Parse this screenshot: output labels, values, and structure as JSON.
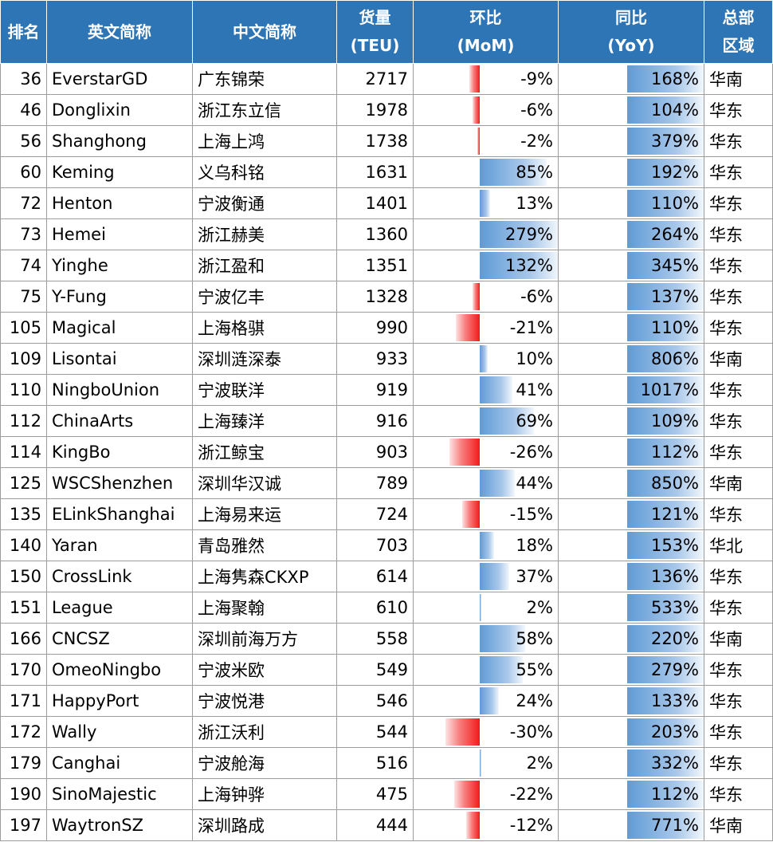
{
  "headers": {
    "rank": "排名",
    "en": "英文简称",
    "cn": "中文简称",
    "vol": [
      "货量",
      "(TEU)"
    ],
    "mom": [
      "环比",
      "(MoM)"
    ],
    "yoy": [
      "同比",
      "(YoY)"
    ],
    "region": [
      "总部",
      "区域"
    ]
  },
  "colors": {
    "header_bg": "#2e75b6",
    "positive_bar": "#5f9bd6",
    "negative_bar": "#f21b1b"
  },
  "rows": [
    {
      "rank": "36",
      "en": "EverstarGD",
      "cn": "广东锦荣",
      "vol": "2717",
      "mom": "-9%",
      "yoy": "168%",
      "region": "华南"
    },
    {
      "rank": "46",
      "en": "Donglixin",
      "cn": "浙江东立信",
      "vol": "1978",
      "mom": "-6%",
      "yoy": "104%",
      "region": "华东"
    },
    {
      "rank": "56",
      "en": "Shanghong",
      "cn": "上海上鸿",
      "vol": "1738",
      "mom": "-2%",
      "yoy": "379%",
      "region": "华东"
    },
    {
      "rank": "60",
      "en": "Keming",
      "cn": "义乌科铭",
      "vol": "1631",
      "mom": "85%",
      "yoy": "192%",
      "region": "华东"
    },
    {
      "rank": "72",
      "en": "Henton",
      "cn": "宁波衡通",
      "vol": "1401",
      "mom": "13%",
      "yoy": "110%",
      "region": "华东"
    },
    {
      "rank": "73",
      "en": "Hemei",
      "cn": "浙江赫美",
      "vol": "1360",
      "mom": "279%",
      "yoy": "264%",
      "region": "华东"
    },
    {
      "rank": "74",
      "en": "Yinghe",
      "cn": "浙江盈和",
      "vol": "1351",
      "mom": "132%",
      "yoy": "345%",
      "region": "华东"
    },
    {
      "rank": "75",
      "en": "Y-Fung",
      "cn": "宁波亿丰",
      "vol": "1328",
      "mom": "-6%",
      "yoy": "137%",
      "region": "华东"
    },
    {
      "rank": "105",
      "en": "Magical",
      "cn": "上海格骐",
      "vol": "990",
      "mom": "-21%",
      "yoy": "110%",
      "region": "华东"
    },
    {
      "rank": "109",
      "en": "Lisontai",
      "cn": "深圳涟深泰",
      "vol": "933",
      "mom": "10%",
      "yoy": "806%",
      "region": "华南"
    },
    {
      "rank": "110",
      "en": "NingboUnion",
      "cn": "宁波联洋",
      "vol": "919",
      "mom": "41%",
      "yoy": "1017%",
      "region": "华东"
    },
    {
      "rank": "112",
      "en": "ChinaArts",
      "cn": "上海臻洋",
      "vol": "916",
      "mom": "69%",
      "yoy": "109%",
      "region": "华东"
    },
    {
      "rank": "114",
      "en": "KingBo",
      "cn": "浙江鲸宝",
      "vol": "903",
      "mom": "-26%",
      "yoy": "112%",
      "region": "华东"
    },
    {
      "rank": "125",
      "en": "WSCShenzhen",
      "cn": "深圳华汉诚",
      "vol": "789",
      "mom": "44%",
      "yoy": "850%",
      "region": "华南"
    },
    {
      "rank": "135",
      "en": "ELinkShanghai",
      "cn": "上海易来运",
      "vol": "724",
      "mom": "-15%",
      "yoy": "121%",
      "region": "华东"
    },
    {
      "rank": "140",
      "en": "Yaran",
      "cn": "青岛雅然",
      "vol": "703",
      "mom": "18%",
      "yoy": "153%",
      "region": "华北"
    },
    {
      "rank": "150",
      "en": "CrossLink",
      "cn": "上海隽森CKXP",
      "vol": "614",
      "mom": "37%",
      "yoy": "136%",
      "region": "华东"
    },
    {
      "rank": "151",
      "en": "League",
      "cn": "上海聚翰",
      "vol": "610",
      "mom": "2%",
      "yoy": "533%",
      "region": "华东"
    },
    {
      "rank": "166",
      "en": "CNCSZ",
      "cn": "深圳前海万方",
      "vol": "558",
      "mom": "58%",
      "yoy": "220%",
      "region": "华南"
    },
    {
      "rank": "170",
      "en": "OmeoNingbo",
      "cn": "宁波米欧",
      "vol": "549",
      "mom": "55%",
      "yoy": "279%",
      "region": "华东"
    },
    {
      "rank": "171",
      "en": "HappyPort",
      "cn": "宁波悦港",
      "vol": "546",
      "mom": "24%",
      "yoy": "133%",
      "region": "华东"
    },
    {
      "rank": "172",
      "en": "Wally",
      "cn": "浙江沃利",
      "vol": "544",
      "mom": "-30%",
      "yoy": "203%",
      "region": "华东"
    },
    {
      "rank": "179",
      "en": "Canghai",
      "cn": "宁波舱海",
      "vol": "516",
      "mom": "2%",
      "yoy": "332%",
      "region": "华东"
    },
    {
      "rank": "190",
      "en": "SinoMajestic",
      "cn": "上海钟骅",
      "vol": "475",
      "mom": "-22%",
      "yoy": "112%",
      "region": "华东"
    },
    {
      "rank": "197",
      "en": "WaytronSZ",
      "cn": "深圳路成",
      "vol": "444",
      "mom": "-12%",
      "yoy": "771%",
      "region": "华南"
    }
  ]
}
